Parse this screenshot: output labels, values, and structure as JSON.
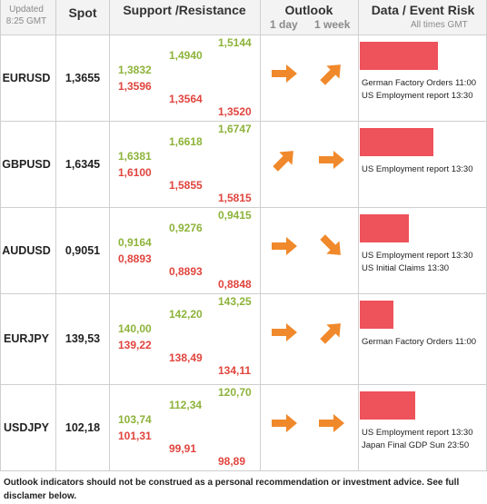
{
  "header": {
    "updated_label": "Updated",
    "updated_time": "8:25 GMT",
    "spot": "Spot",
    "support_resistance": "Support /Resistance",
    "outlook": "Outlook",
    "outlook_day": "1 day",
    "outlook_week": "1 week",
    "data_event": "Data / Event Risk",
    "all_times": "All times GMT"
  },
  "colors": {
    "resistance": "#8db33a",
    "support": "#e0443d",
    "event_bar": "#ee525a",
    "arrow": "#f0892b"
  },
  "rows": [
    {
      "symbol": "EURUSD",
      "spot": "1,3655",
      "sr1_green": "1,3832",
      "sr1_red": "1,3596",
      "sr2_green": "1,4940",
      "sr2_red": "1,3564",
      "sr3_green": "1,5144",
      "sr3_red": "1,3520",
      "outlook_day": "right-arrow-icon",
      "outlook_week": "up-right-arrow-icon",
      "event_bar_level": 0.62,
      "events": [
        "German Factory Orders 11:00",
        "US Employment report 13:30"
      ]
    },
    {
      "symbol": "GBPUSD",
      "spot": "1,6345",
      "sr1_green": "1,6381",
      "sr1_red": "1,6100",
      "sr2_green": "1,6618",
      "sr2_red": "1,5855",
      "sr3_green": "1,6747",
      "sr3_red": "1,5815",
      "outlook_day": "up-right-arrow-icon",
      "outlook_week": "right-arrow-icon",
      "event_bar_level": 0.59,
      "events": [
        "US Employment report 13:30"
      ]
    },
    {
      "symbol": "AUDUSD",
      "spot": "0,9051",
      "sr1_green": "0,9164",
      "sr1_red": "0,8893",
      "sr2_green": "0,9276",
      "sr2_red": "0,8893",
      "sr3_green": "0,9415",
      "sr3_red": "0,8848",
      "outlook_day": "right-arrow-icon",
      "outlook_week": "down-right-arrow-icon",
      "event_bar_level": 0.39,
      "events": [
        "US Employment report 13:30",
        "US Initial Claims 13:30"
      ]
    },
    {
      "symbol": "EURJPY",
      "spot": "139,53",
      "sr1_green": "140,00",
      "sr1_red": "139,22",
      "sr2_green": "142,20",
      "sr2_red": "138,49",
      "sr3_green": "143,25",
      "sr3_red": "134,11",
      "outlook_day": "right-arrow-icon",
      "outlook_week": "up-right-arrow-icon",
      "event_bar_level": 0.27,
      "events": [
        "German Factory Orders 11:00"
      ]
    },
    {
      "symbol": "USDJPY",
      "spot": "102,18",
      "sr1_green": "103,74",
      "sr1_red": "101,31",
      "sr2_green": "112,34",
      "sr2_red": "99,91",
      "sr3_green": "120,70",
      "sr3_red": "98,89",
      "outlook_day": "right-arrow-icon",
      "outlook_week": "right-arrow-icon",
      "event_bar_level": 0.44,
      "events": [
        "US Employment report 13:30",
        "Japan Final GDP Sun 23:50"
      ]
    }
  ],
  "footer": {
    "disclaimer": "Outlook indicators should not be construed as a personal recommendation or investment advice. See full disclamer below."
  }
}
